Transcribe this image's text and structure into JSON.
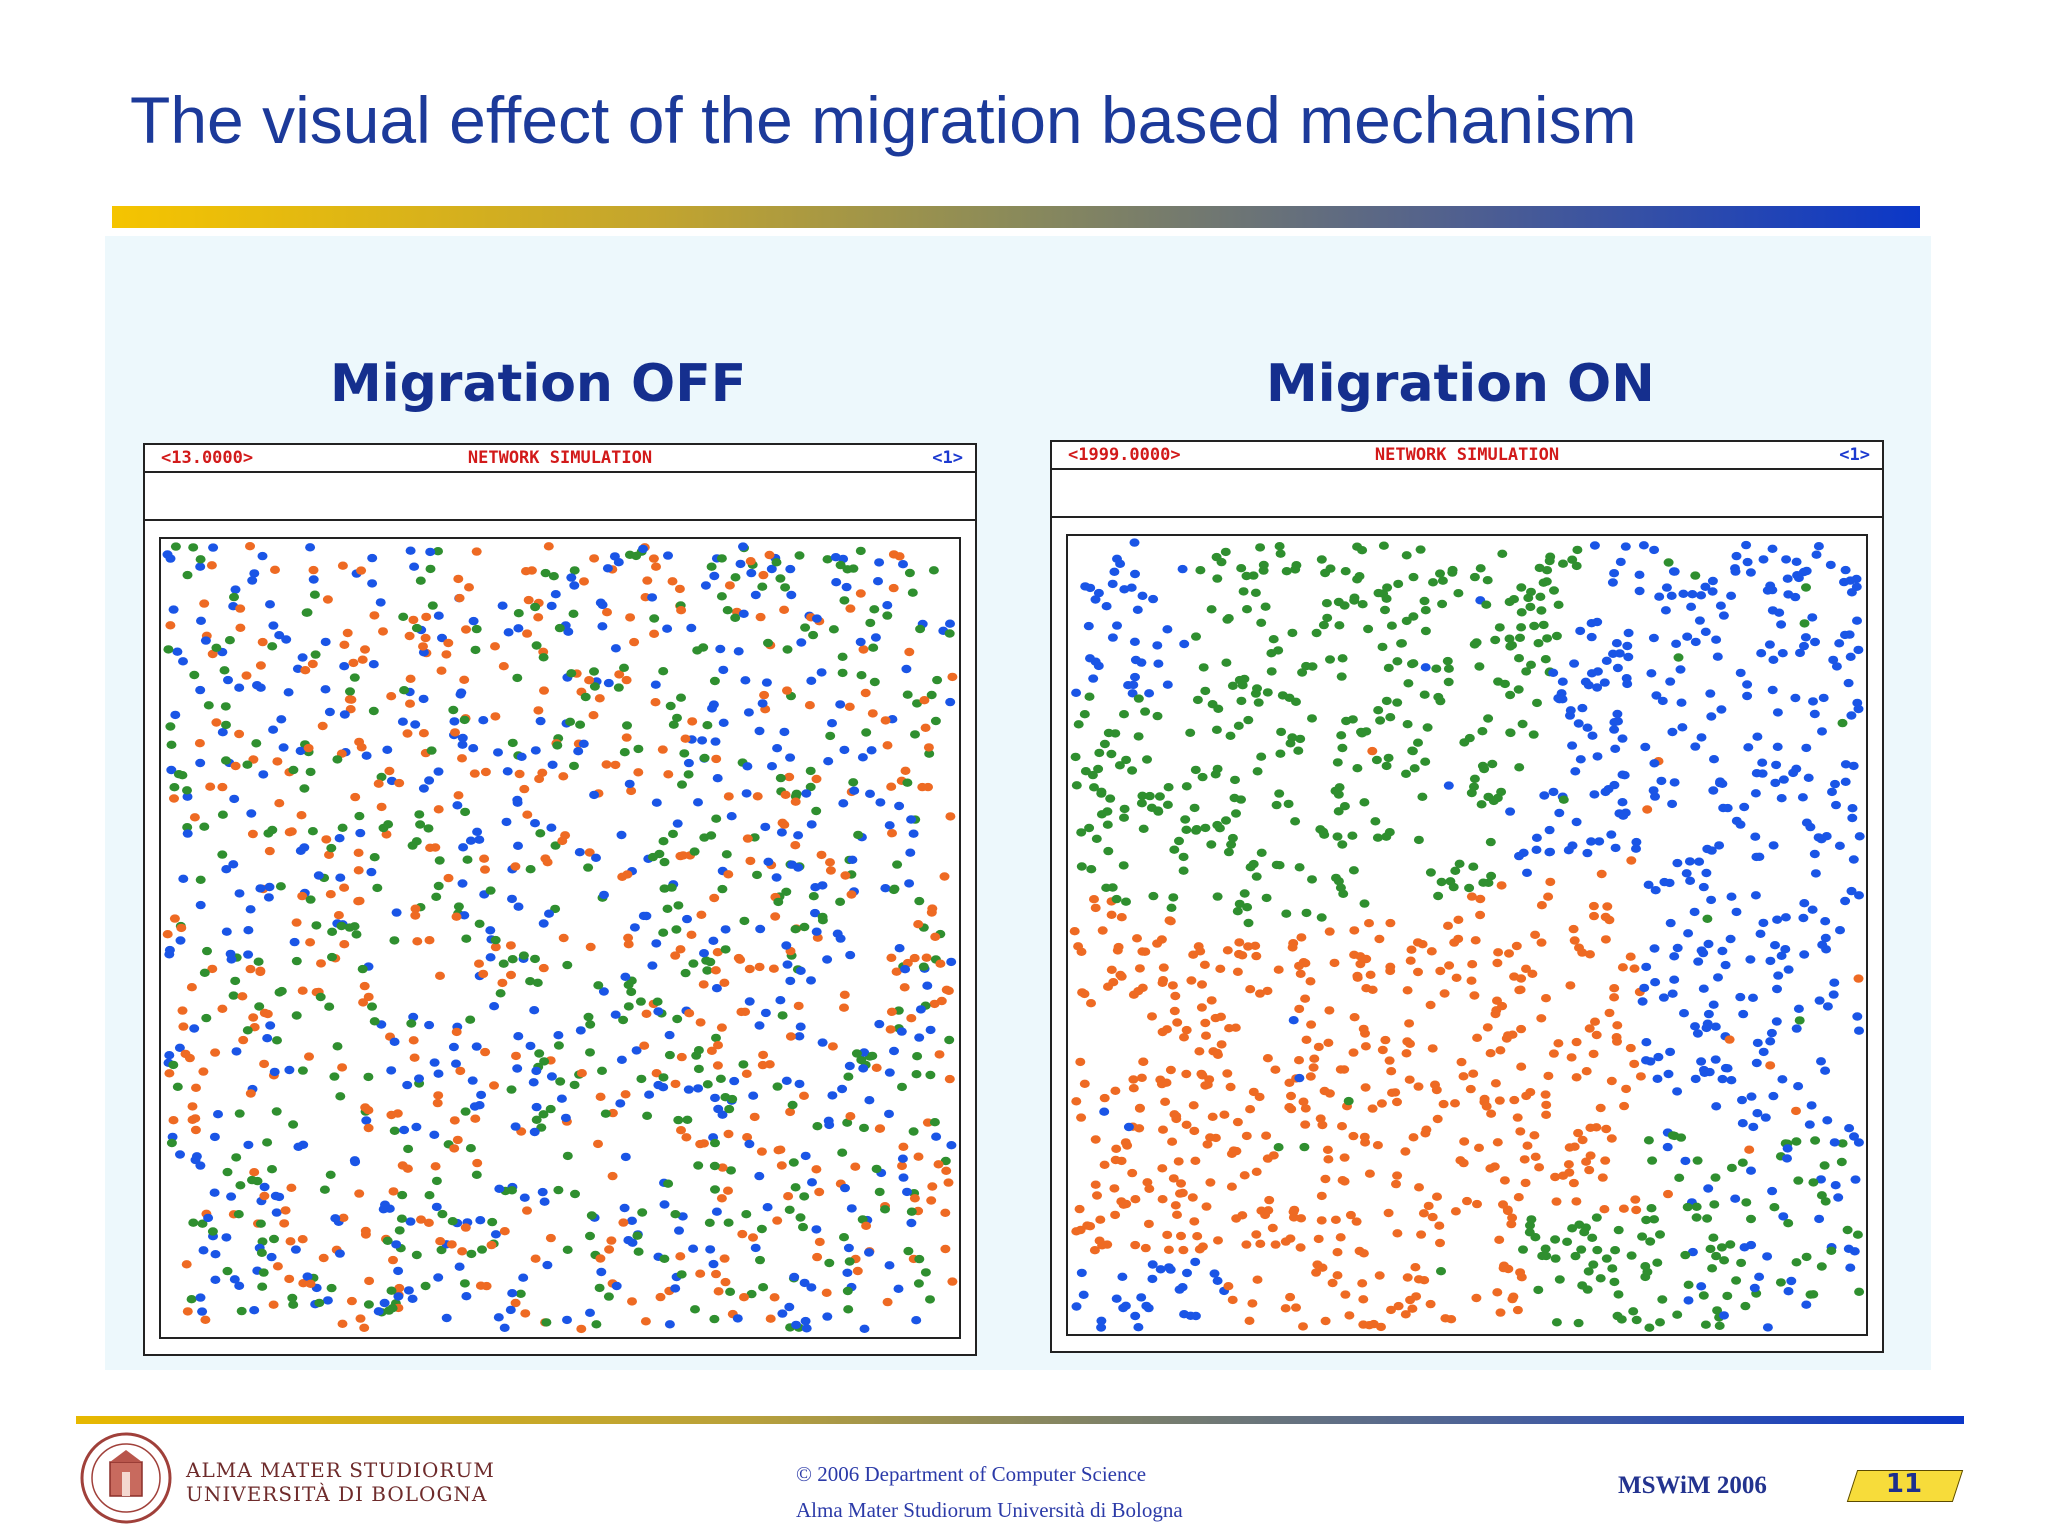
{
  "slide": {
    "title": "The visual effect of the migration based mechanism",
    "number": "11"
  },
  "left": {
    "heading": "Migration OFF",
    "sim_left": "<13.0000>",
    "sim_title": "NETWORK SIMULATION",
    "sim_right": "<1>"
  },
  "right": {
    "heading": "Migration ON",
    "sim_left": "<1999.0000>",
    "sim_title": "NETWORK SIMULATION",
    "sim_right": "<1>"
  },
  "colors": {
    "title": "#1c3a9a",
    "node_blue": "#1a55e6",
    "node_green": "#2f8f2f",
    "node_orange": "#ee6a23"
  },
  "footer": {
    "university_line1": "ALMA MATER STUDIORUM",
    "university_line2": "UNIVERSITÀ DI BOLOGNA",
    "copyright": "© 2006 Department of Computer Science",
    "institution": "Alma Mater Studiorum Università di Bologna",
    "conference": "MSWiM 2006"
  }
}
